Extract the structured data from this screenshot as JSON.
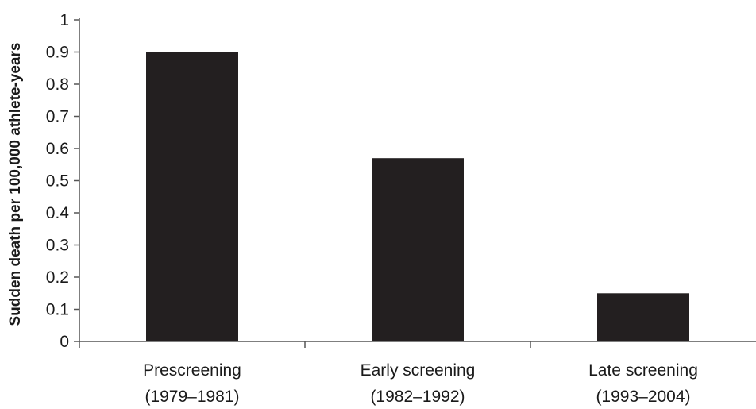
{
  "chart_data": {
    "type": "bar",
    "categories": [
      [
        "Prescreening",
        "(1979–1981)"
      ],
      [
        "Early screening",
        "(1982–1992)"
      ],
      [
        "Late screening",
        "(1993–2004)"
      ]
    ],
    "values": [
      0.9,
      0.57,
      0.15
    ],
    "ylabel": "Sudden death per 100,000 athlete-years",
    "xlabel": "",
    "ylim": [
      0,
      1
    ],
    "yticks": [
      "0",
      "0.1",
      "0.2",
      "0.3",
      "0.4",
      "0.5",
      "0.6",
      "0.7",
      "0.8",
      "0.9",
      "1"
    ],
    "grid": false,
    "colors": {
      "bar": "#231f20",
      "axis": "#555555"
    }
  }
}
